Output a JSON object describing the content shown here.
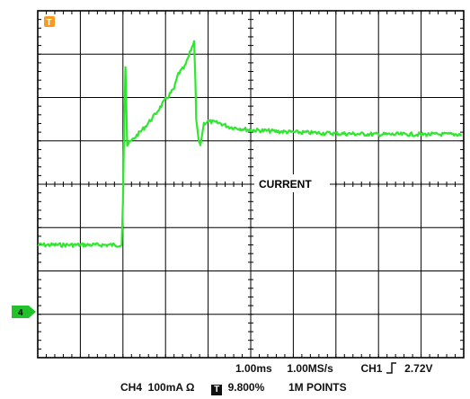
{
  "trigger_marker": {
    "label": "T",
    "color": "#f59a23"
  },
  "channel_marker": {
    "label": "4",
    "color": "#22c32a"
  },
  "trace": {
    "label": "CURRENT",
    "color": "#2ee82e",
    "grid_divisions": {
      "x": 10,
      "y": 8
    },
    "waveform_divisions": [
      [
        0.0,
        5.4
      ],
      [
        1.0,
        5.4
      ],
      [
        1.97,
        5.4
      ],
      [
        2.0,
        4.4
      ],
      [
        2.03,
        2.6
      ],
      [
        2.06,
        1.3
      ],
      [
        2.1,
        3.1
      ],
      [
        2.25,
        2.95
      ],
      [
        2.5,
        2.7
      ],
      [
        2.75,
        2.4
      ],
      [
        3.0,
        2.05
      ],
      [
        3.2,
        1.8
      ],
      [
        3.3,
        1.45
      ],
      [
        3.45,
        1.3
      ],
      [
        3.6,
        0.9
      ],
      [
        3.67,
        0.7
      ],
      [
        3.7,
        1.6
      ],
      [
        3.72,
        2.5
      ],
      [
        3.78,
        3.0
      ],
      [
        3.82,
        3.1
      ],
      [
        3.86,
        2.85
      ],
      [
        3.9,
        2.6
      ],
      [
        4.0,
        2.55
      ],
      [
        4.3,
        2.6
      ],
      [
        4.5,
        2.68
      ],
      [
        5.0,
        2.75
      ],
      [
        6.0,
        2.8
      ],
      [
        7.0,
        2.83
      ],
      [
        8.0,
        2.85
      ],
      [
        9.0,
        2.85
      ],
      [
        9.95,
        2.85
      ]
    ]
  },
  "status": {
    "timebase": "1.00ms",
    "sample_rate": "1.00MS/s",
    "trigger_source": "CH1",
    "trigger_level": "2.72V",
    "channel_setting": "CH4  100mA Ω",
    "trigger_position": "9.800%",
    "record_length": "1M POINTS",
    "trigger_icon_label": "T"
  }
}
